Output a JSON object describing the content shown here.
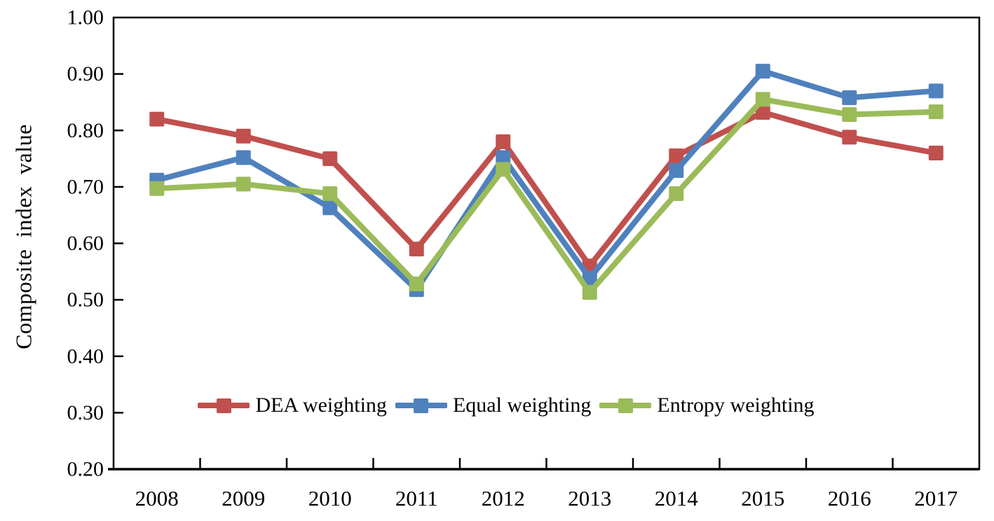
{
  "chart_data": {
    "type": "line",
    "title": "",
    "xlabel": "",
    "ylabel": "Composite index value",
    "categories": [
      "2008",
      "2009",
      "2010",
      "2011",
      "2012",
      "2013",
      "2014",
      "2015",
      "2016",
      "2017"
    ],
    "series": [
      {
        "name": "DEA weighting",
        "color": "#C0504D",
        "marker": "square",
        "values": [
          0.82,
          0.79,
          0.75,
          0.59,
          0.78,
          0.56,
          0.755,
          0.832,
          0.788,
          0.76
        ]
      },
      {
        "name": "Equal weighting",
        "color": "#4F81BD",
        "marker": "square",
        "values": [
          0.712,
          0.752,
          0.663,
          0.518,
          0.752,
          0.538,
          0.729,
          0.905,
          0.858,
          0.87
        ]
      },
      {
        "name": "Entropy weighting",
        "color": "#9BBB59",
        "marker": "square",
        "values": [
          0.697,
          0.705,
          0.688,
          0.528,
          0.731,
          0.513,
          0.688,
          0.855,
          0.828,
          0.833
        ]
      }
    ],
    "ylim": [
      0.2,
      1.0
    ],
    "ytick_interval": 0.1,
    "ytick_labels": [
      "0.20",
      "0.30",
      "0.40",
      "0.50",
      "0.60",
      "0.70",
      "0.80",
      "0.90",
      "1.00"
    ],
    "grid": false,
    "legend_position": "inside-bottom-center",
    "axis_color": "#000000",
    "background": "#FFFFFF"
  }
}
